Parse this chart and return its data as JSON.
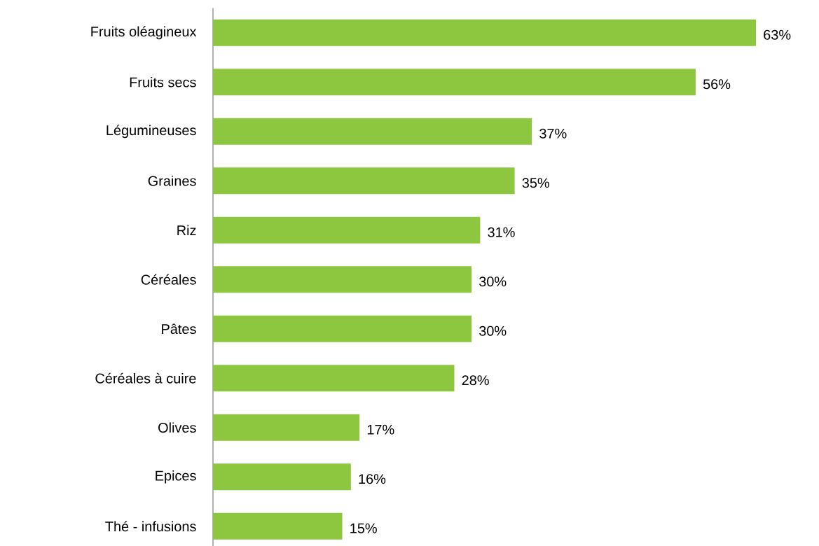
{
  "chart_data": {
    "type": "bar",
    "orientation": "horizontal",
    "categories": [
      "Fruits oléagineux",
      "Fruits secs",
      "Légumineuses",
      "Graines",
      "Riz",
      "Céréales",
      "Pâtes",
      "Céréales à cuire",
      "Olives",
      "Epices",
      "Thé - infusions"
    ],
    "values": [
      63,
      56,
      37,
      35,
      31,
      30,
      30,
      28,
      17,
      16,
      15
    ],
    "value_labels": [
      "63%",
      "56%",
      "37%",
      "35%",
      "31%",
      "30%",
      "30%",
      "28%",
      "17%",
      "16%",
      "15%"
    ],
    "color": "#8dc63f"
  }
}
